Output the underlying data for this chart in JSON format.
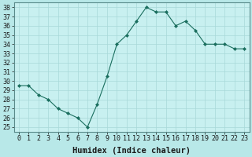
{
  "x": [
    0,
    1,
    2,
    3,
    4,
    5,
    6,
    7,
    8,
    9,
    10,
    11,
    12,
    13,
    14,
    15,
    16,
    17,
    18,
    19,
    20,
    21,
    22,
    23
  ],
  "y": [
    29.5,
    29.5,
    28.5,
    28.0,
    27.0,
    26.5,
    26.0,
    25.0,
    27.5,
    30.5,
    34.0,
    35.0,
    36.5,
    38.0,
    37.5,
    37.5,
    36.0,
    36.5,
    35.5,
    34.0,
    34.0,
    34.0,
    33.5,
    33.5
  ],
  "line_color": "#1a6e5e",
  "marker_color": "#1a6e5e",
  "bg_color": "#b8e8e8",
  "plot_bg_color": "#c8f0f0",
  "grid_color": "#a8d8d8",
  "xlabel": "Humidex (Indice chaleur)",
  "xlim": [
    -0.5,
    23.5
  ],
  "ylim": [
    24.5,
    38.5
  ],
  "yticks": [
    25,
    26,
    27,
    28,
    29,
    30,
    31,
    32,
    33,
    34,
    35,
    36,
    37,
    38
  ],
  "xticks": [
    0,
    1,
    2,
    3,
    4,
    5,
    6,
    7,
    8,
    9,
    10,
    11,
    12,
    13,
    14,
    15,
    16,
    17,
    18,
    19,
    20,
    21,
    22,
    23
  ],
  "tick_label_fontsize": 6,
  "xlabel_fontsize": 7.5,
  "tick_color": "#1a1a1a",
  "spine_color": "#5a8a8a"
}
